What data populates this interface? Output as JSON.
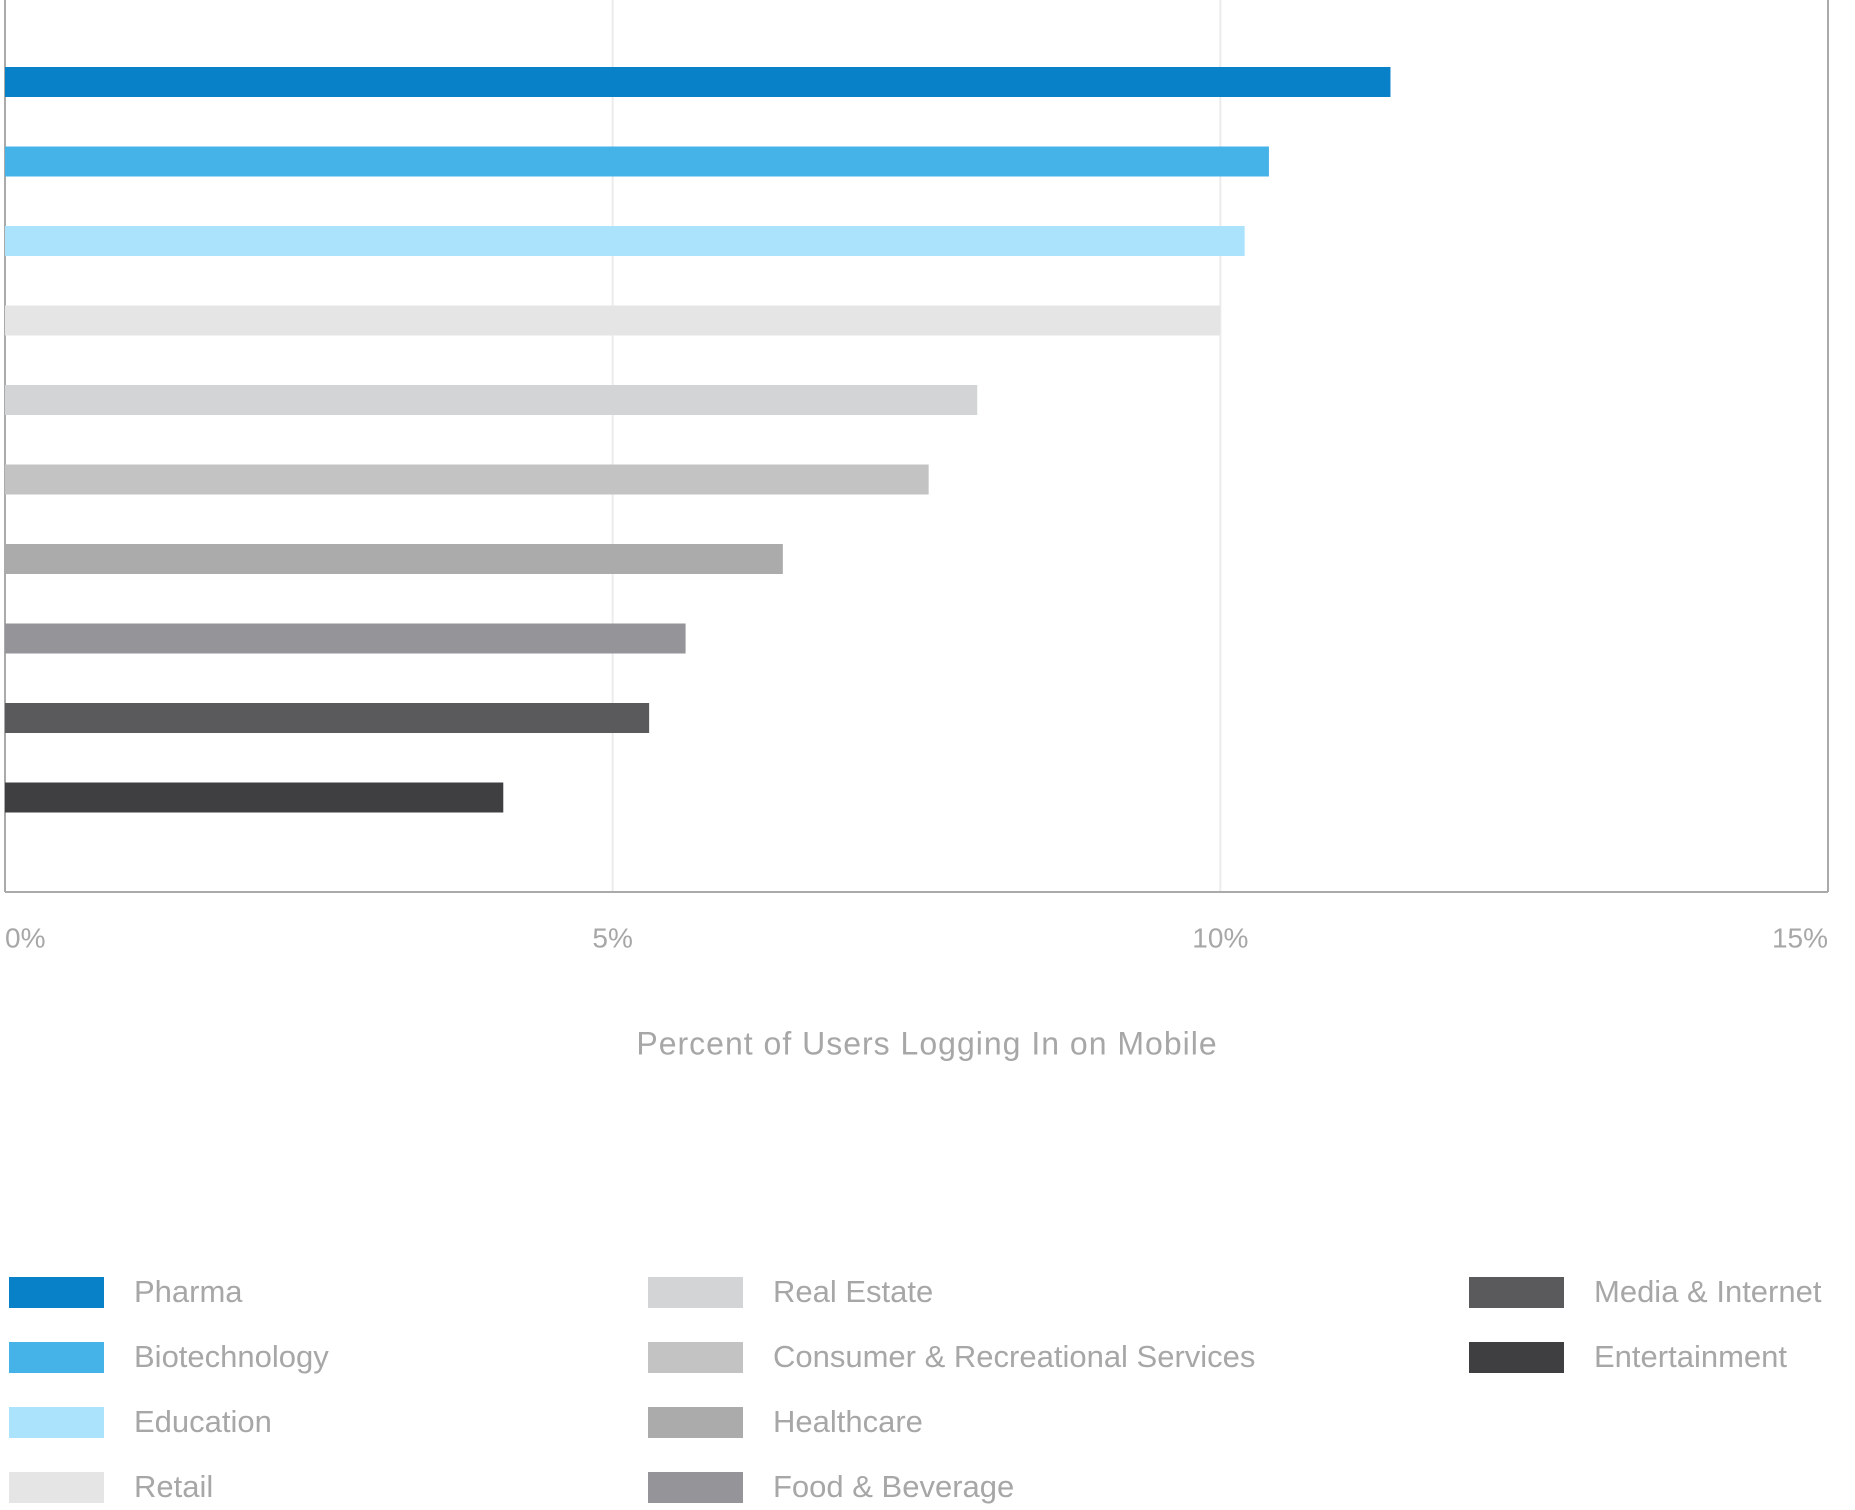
{
  "chart_data": {
    "type": "hbar",
    "xlabel": "Percent of Users Logging In on Mobile",
    "series": [
      {
        "name": "Pharma",
        "color": "#0881c8",
        "values": [
          11.4
        ]
      },
      {
        "name": "Biotechnology",
        "color": "#45b3e8",
        "values": [
          10.4
        ]
      },
      {
        "name": "Education",
        "color": "#aae3fb",
        "values": [
          10.2
        ]
      },
      {
        "name": "Retail",
        "color": "#e5e5e6",
        "values": [
          10.0
        ]
      },
      {
        "name": "Real Estate",
        "color": "#d2d4d5",
        "values": [
          8.0
        ]
      },
      {
        "name": "Consumer & Recreational Services",
        "color": "#c4c3c4",
        "values": [
          7.6
        ]
      },
      {
        "name": "Healthcare",
        "color": "#ababab",
        "values": [
          6.4
        ]
      },
      {
        "name": "Food & Beverage",
        "color": "#959498",
        "values": [
          5.6
        ]
      },
      {
        "name": "Media & Internet",
        "color": "#5a5a5c",
        "values": [
          5.3
        ]
      },
      {
        "name": "Entertainment",
        "color": "#3f3e40",
        "values": [
          4.1
        ]
      }
    ],
    "xlim": [
      0,
      15
    ],
    "xticks": [
      {
        "value": 0,
        "label": "0%"
      },
      {
        "value": 5,
        "label": "5%"
      },
      {
        "value": 10,
        "label": "10%"
      },
      {
        "value": 15,
        "label": "15%"
      }
    ],
    "grid": true
  }
}
